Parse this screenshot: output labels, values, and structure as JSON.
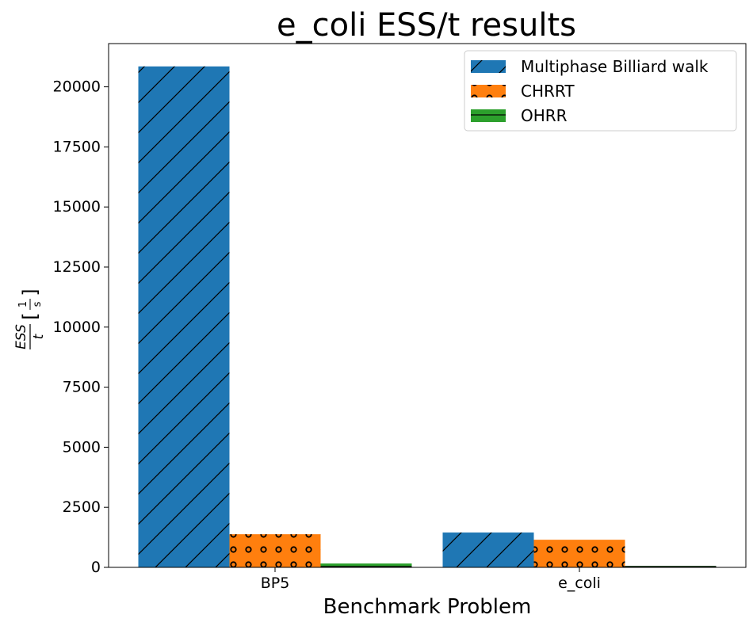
{
  "chart_data": {
    "type": "bar",
    "title": "e_coli ESS/t results",
    "xlabel": "Benchmark Problem",
    "ylabel": "ESS/t [1/s]",
    "categories": [
      "BP5",
      "e_coli"
    ],
    "series": [
      {
        "name": "Multiphase Billiard walk",
        "values": [
          20850,
          1450
        ],
        "color": "#1f77b4",
        "hatch": "diagonal"
      },
      {
        "name": "CHRRT",
        "values": [
          1380,
          1150
        ],
        "color": "#ff7f0e",
        "hatch": "circles"
      },
      {
        "name": "OHRR",
        "values": [
          160,
          60
        ],
        "color": "#2ca02c",
        "hatch": "horizontal"
      }
    ],
    "ylim": [
      0,
      21800
    ],
    "yticks": [
      0,
      2500,
      5000,
      7500,
      10000,
      12500,
      15000,
      17500,
      20000
    ],
    "ytick_labels": [
      "0",
      "2500",
      "5000",
      "7500",
      "10000",
      "12500",
      "15000",
      "17500",
      "20000"
    ],
    "grid": false,
    "legend_position": "top-right"
  }
}
